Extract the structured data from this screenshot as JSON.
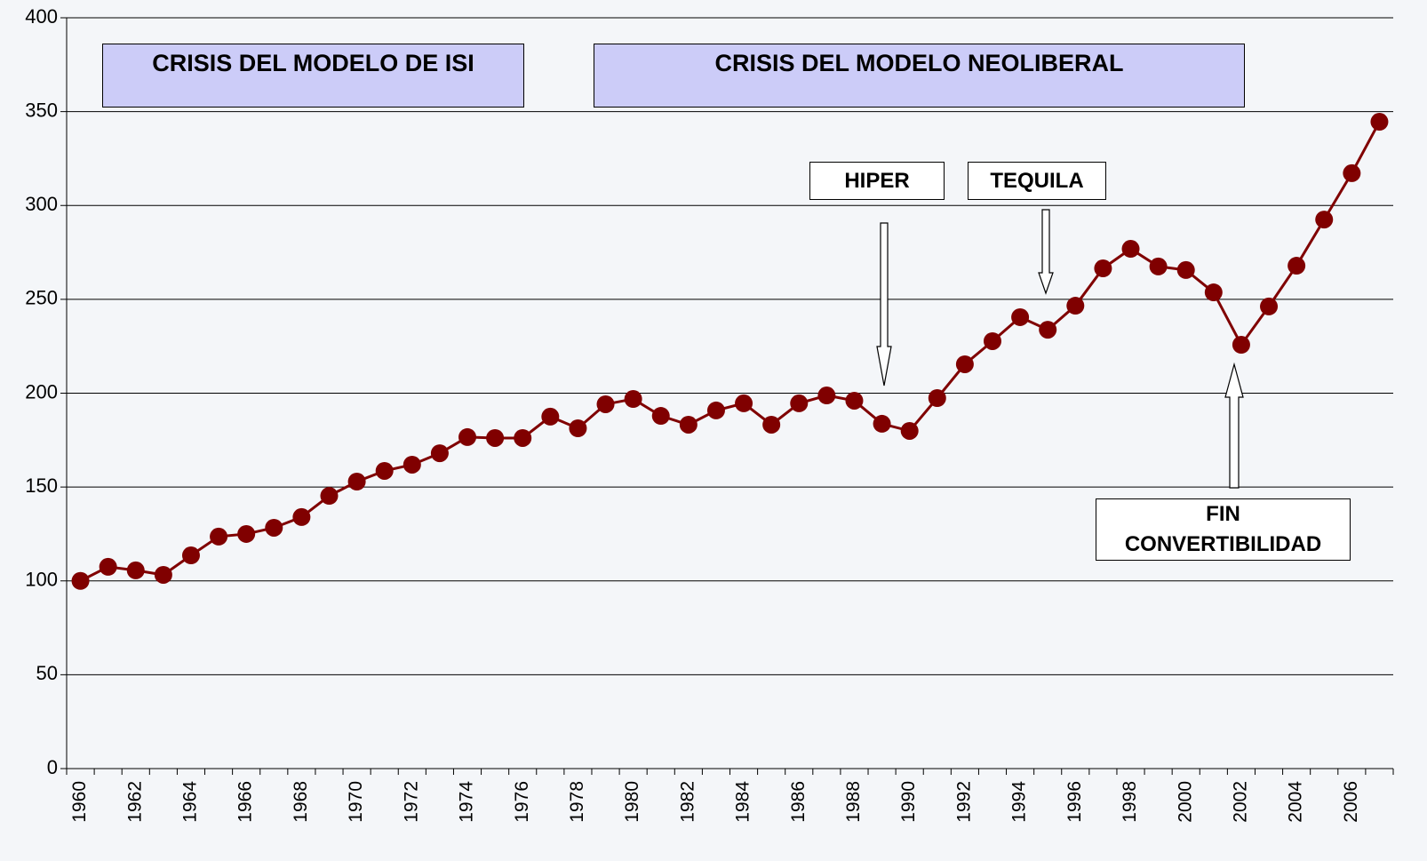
{
  "chart_data": {
    "type": "line",
    "categories": [
      "1960",
      null,
      "1962",
      null,
      "1964",
      null,
      "1966",
      null,
      "1968",
      null,
      "1970",
      null,
      "1972",
      null,
      "1974",
      null,
      "1976",
      null,
      "1978",
      null,
      "1980",
      null,
      "1982",
      null,
      "1984",
      null,
      "1986",
      null,
      "1988",
      null,
      "1990",
      null,
      "1992",
      null,
      "1994",
      null,
      "1996",
      null,
      "1998",
      null,
      "2000",
      null,
      "2002",
      null,
      "2004",
      null,
      "2006",
      null
    ],
    "series": [
      {
        "color": "#800000",
        "values": [
          100,
          107.5,
          105.6,
          103.2,
          113.6,
          123.6,
          125,
          128.3,
          134,
          145.3,
          152.9,
          158.6,
          161.9,
          168,
          176.6,
          176.1,
          176.1,
          187.5,
          181.3,
          194.1,
          196.9,
          187.9,
          183.2,
          190.8,
          194.6,
          183.2,
          194.6,
          198.8,
          196,
          183.7,
          179.9,
          197.4,
          215.4,
          227.7,
          240.5,
          233.8,
          246.6,
          266.5,
          276.9,
          267.5,
          265.6,
          253.7,
          225.8,
          246.2,
          267.9,
          292.5,
          317.2,
          344.6
        ]
      }
    ],
    "ylim": [
      0,
      400
    ],
    "yticks": [
      0,
      50,
      100,
      150,
      200,
      250,
      300,
      350,
      400
    ],
    "grid": true,
    "annotations": [
      "CRISIS DEL MODELO DE ISI",
      "CRISIS DEL MODELO NEOLIBERAL",
      "HIPER",
      "TEQUILA",
      "FIN CONVERTIBILIDAD"
    ]
  }
}
